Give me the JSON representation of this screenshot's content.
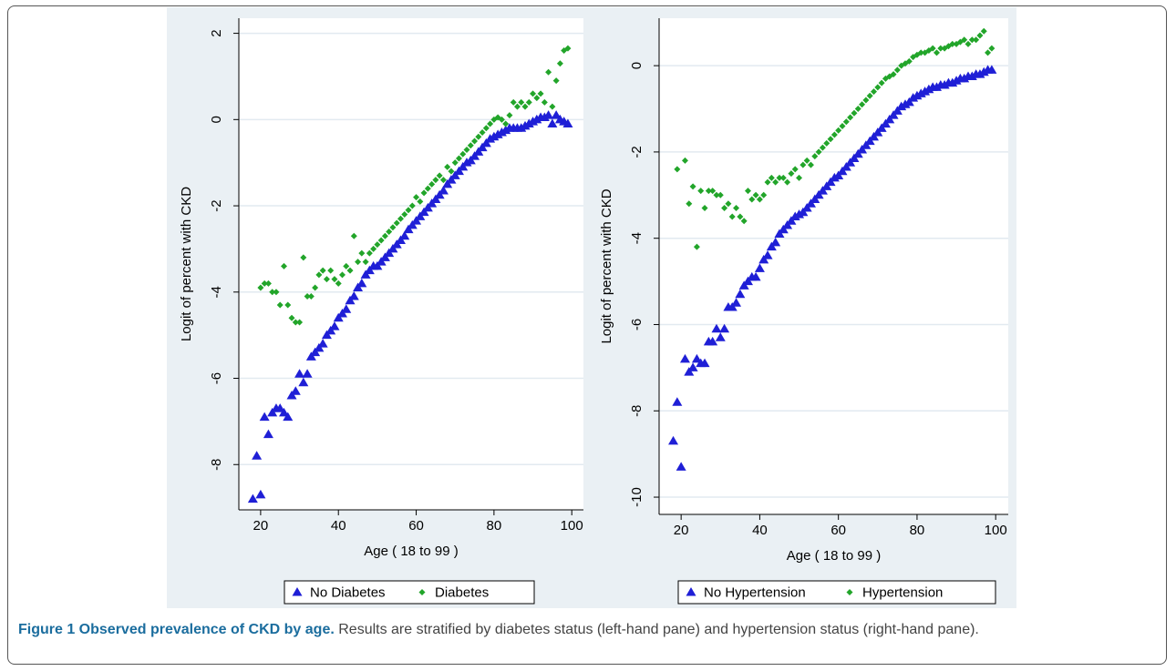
{
  "chart_data": [
    {
      "type": "scatter",
      "xlabel": "Age ( 18 to 99 )",
      "ylabel": "Logit of percent with CKD",
      "xlim": [
        14.4,
        103
      ],
      "ylim": [
        -9.05,
        2.35
      ],
      "xticks": [
        20,
        40,
        60,
        80,
        100
      ],
      "yticks": [
        2,
        0,
        -2,
        -4,
        -6,
        -8
      ],
      "grid": true,
      "legend": "bottom",
      "x": [
        18,
        19,
        20,
        21,
        22,
        23,
        24,
        25,
        26,
        27,
        28,
        29,
        30,
        31,
        32,
        33,
        34,
        35,
        36,
        37,
        38,
        39,
        40,
        41,
        42,
        43,
        44,
        45,
        46,
        47,
        48,
        49,
        50,
        51,
        52,
        53,
        54,
        55,
        56,
        57,
        58,
        59,
        60,
        61,
        62,
        63,
        64,
        65,
        66,
        67,
        68,
        69,
        70,
        71,
        72,
        73,
        74,
        75,
        76,
        77,
        78,
        79,
        80,
        81,
        82,
        83,
        84,
        85,
        86,
        87,
        88,
        89,
        90,
        91,
        92,
        93,
        94,
        95,
        96,
        97,
        98,
        99
      ],
      "series": [
        {
          "name": "No Diabetes",
          "color": "#1f1fd6",
          "marker": "triangle",
          "values": [
            -8.8,
            -7.8,
            -8.7,
            -6.9,
            -7.3,
            -6.8,
            -6.7,
            -6.7,
            -6.8,
            -6.9,
            -6.4,
            -6.3,
            -5.9,
            -6.1,
            -5.9,
            -5.5,
            -5.4,
            -5.3,
            -5.2,
            -5.0,
            -4.9,
            -4.8,
            -4.6,
            -4.5,
            -4.4,
            -4.2,
            -4.1,
            -3.9,
            -3.8,
            -3.6,
            -3.5,
            -3.4,
            -3.4,
            -3.3,
            -3.2,
            -3.1,
            -3.0,
            -2.9,
            -2.8,
            -2.7,
            -2.55,
            -2.45,
            -2.35,
            -2.25,
            -2.15,
            -2.05,
            -1.95,
            -1.85,
            -1.75,
            -1.65,
            -1.5,
            -1.4,
            -1.3,
            -1.2,
            -1.1,
            -1.0,
            -0.95,
            -0.85,
            -0.75,
            -0.65,
            -0.55,
            -0.45,
            -0.4,
            -0.35,
            -0.3,
            -0.25,
            -0.2,
            -0.2,
            -0.2,
            -0.2,
            -0.15,
            -0.1,
            -0.05,
            0,
            0.05,
            0.05,
            0.1,
            -0.1,
            0.1,
            0,
            -0.05,
            -0.1
          ]
        },
        {
          "name": "Diabetes",
          "color": "#22a52a",
          "marker": "diamond",
          "values": [
            null,
            null,
            -3.9,
            -3.8,
            -3.8,
            -4,
            -4,
            -4.3,
            -3.4,
            -4.3,
            -4.6,
            -4.7,
            -4.7,
            -3.2,
            -4.1,
            -4.1,
            -3.9,
            -3.6,
            -3.5,
            -3.7,
            -3.5,
            -3.7,
            -3.8,
            -3.6,
            -3.4,
            -3.5,
            -2.7,
            -3.3,
            -3.1,
            -3.3,
            -3.1,
            -3.0,
            -2.9,
            -2.8,
            -2.7,
            -2.6,
            -2.5,
            -2.4,
            -2.3,
            -2.2,
            -2.1,
            -2.0,
            -1.8,
            -1.9,
            -1.7,
            -1.6,
            -1.5,
            -1.4,
            -1.3,
            -1.4,
            -1.1,
            -1.2,
            -1.0,
            -0.9,
            -0.8,
            -0.7,
            -0.6,
            -0.5,
            -0.4,
            -0.3,
            -0.2,
            -0.1,
            0,
            0.05,
            0,
            -0.1,
            0.1,
            0.4,
            0.3,
            0.4,
            0.3,
            0.4,
            0.6,
            0.5,
            0.6,
            0.4,
            1.1,
            0.3,
            0.9,
            1.3,
            1.6,
            1.65
          ]
        }
      ]
    },
    {
      "type": "scatter",
      "xlabel": "Age ( 18 to 99 )",
      "ylabel": "Logit of percent with CKD",
      "xlim": [
        14.4,
        103.2
      ],
      "ylim": [
        -10.4,
        1.1
      ],
      "xticks": [
        20,
        40,
        60,
        80,
        100
      ],
      "yticks": [
        0,
        -2,
        -4,
        -6,
        -8,
        -10
      ],
      "grid": true,
      "legend": "bottom",
      "x": [
        18,
        19,
        20,
        21,
        22,
        23,
        24,
        25,
        26,
        27,
        28,
        29,
        30,
        31,
        32,
        33,
        34,
        35,
        36,
        37,
        38,
        39,
        40,
        41,
        42,
        43,
        44,
        45,
        46,
        47,
        48,
        49,
        50,
        51,
        52,
        53,
        54,
        55,
        56,
        57,
        58,
        59,
        60,
        61,
        62,
        63,
        64,
        65,
        66,
        67,
        68,
        69,
        70,
        71,
        72,
        73,
        74,
        75,
        76,
        77,
        78,
        79,
        80,
        81,
        82,
        83,
        84,
        85,
        86,
        87,
        88,
        89,
        90,
        91,
        92,
        93,
        94,
        95,
        96,
        97,
        98,
        99
      ],
      "series": [
        {
          "name": "No Hypertension",
          "color": "#1f1fd6",
          "marker": "triangle",
          "values": [
            -8.7,
            -7.8,
            -9.3,
            -6.8,
            -7.1,
            -7.0,
            -6.8,
            -6.9,
            -6.9,
            -6.4,
            -6.4,
            -6.1,
            -6.3,
            -6.1,
            -5.6,
            -5.6,
            -5.5,
            -5.3,
            -5.1,
            -5.0,
            -4.9,
            -4.9,
            -4.7,
            -4.5,
            -4.4,
            -4.2,
            -4.1,
            -3.9,
            -3.8,
            -3.7,
            -3.6,
            -3.5,
            -3.45,
            -3.4,
            -3.3,
            -3.2,
            -3.1,
            -3.0,
            -2.9,
            -2.8,
            -2.7,
            -2.6,
            -2.55,
            -2.45,
            -2.35,
            -2.25,
            -2.15,
            -2.05,
            -1.95,
            -1.85,
            -1.75,
            -1.65,
            -1.55,
            -1.45,
            -1.35,
            -1.25,
            -1.15,
            -1.05,
            -0.95,
            -0.9,
            -0.85,
            -0.75,
            -0.7,
            -0.65,
            -0.6,
            -0.55,
            -0.5,
            -0.5,
            -0.45,
            -0.45,
            -0.4,
            -0.4,
            -0.35,
            -0.3,
            -0.3,
            -0.25,
            -0.25,
            -0.2,
            -0.2,
            -0.15,
            -0.1,
            -0.1
          ]
        },
        {
          "name": "Hypertension",
          "color": "#22a52a",
          "marker": "diamond",
          "values": [
            null,
            -2.4,
            null,
            -2.2,
            -3.2,
            -2.8,
            -4.2,
            -2.9,
            -3.3,
            -2.9,
            -2.9,
            -3.0,
            -3.0,
            -3.3,
            -3.2,
            -3.5,
            -3.3,
            -3.5,
            -3.6,
            -2.9,
            -3.1,
            -3.0,
            -3.1,
            -3.0,
            -2.7,
            -2.6,
            -2.7,
            -2.6,
            -2.6,
            -2.7,
            -2.5,
            -2.4,
            -2.6,
            -2.3,
            -2.2,
            -2.3,
            -2.1,
            -2.0,
            -1.9,
            -1.8,
            -1.7,
            -1.6,
            -1.5,
            -1.4,
            -1.3,
            -1.2,
            -1.1,
            -1.0,
            -0.9,
            -0.8,
            -0.7,
            -0.6,
            -0.5,
            -0.4,
            -0.3,
            -0.25,
            -0.2,
            -0.1,
            0,
            0.05,
            0.1,
            0.2,
            0.25,
            0.3,
            0.3,
            0.35,
            0.4,
            0.3,
            0.4,
            0.4,
            0.45,
            0.5,
            0.5,
            0.55,
            0.6,
            0.5,
            0.6,
            0.6,
            0.7,
            0.8,
            0.3,
            0.4
          ]
        }
      ]
    }
  ],
  "caption": {
    "label": "Figure 1 Observed prevalence of CKD by age.",
    "text": "Results are stratified by diabetes status (left-hand pane) and hypertension status (right-hand pane)."
  }
}
